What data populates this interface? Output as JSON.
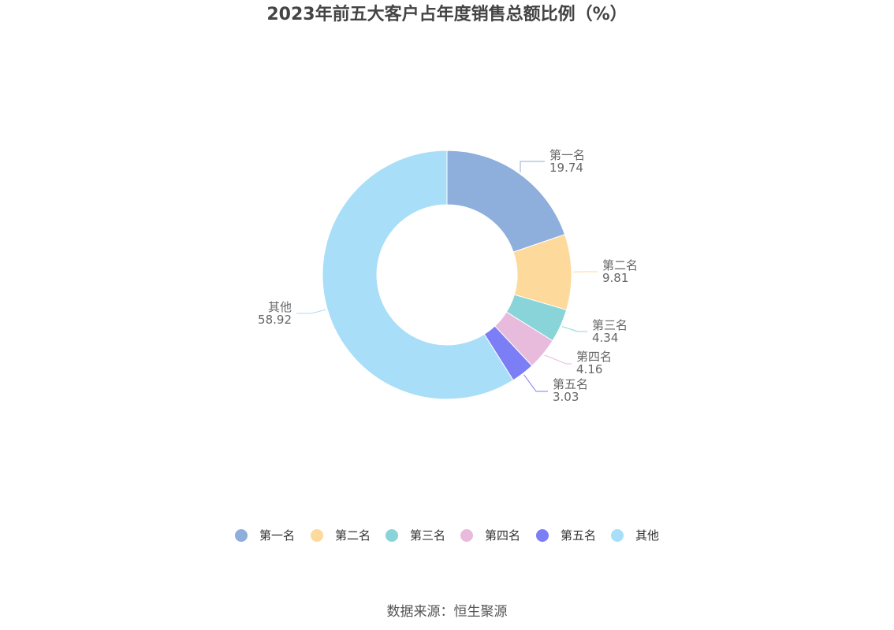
{
  "title": "2023年前五大客户占年度销售总额比例（%）",
  "source": "数据来源：恒生聚源",
  "chart_data": {
    "type": "pie",
    "subtype": "donut",
    "title": "2023年前五大客户占年度销售总额比例（%）",
    "legend_position": "bottom",
    "slices": [
      {
        "label": "第一名",
        "value": 19.74,
        "value_text": "19.74",
        "color": "#8eaedb"
      },
      {
        "label": "第二名",
        "value": 9.81,
        "value_text": "9.81",
        "color": "#fdd99b"
      },
      {
        "label": "第三名",
        "value": 4.34,
        "value_text": "4.34",
        "color": "#88d4d9"
      },
      {
        "label": "第四名",
        "value": 4.16,
        "value_text": "4.16",
        "color": "#e8bbdc"
      },
      {
        "label": "第五名",
        "value": 3.03,
        "value_text": "3.03",
        "color": "#7b7ef5"
      },
      {
        "label": "其他",
        "value": 58.92,
        "value_text": "58.92",
        "color": "#a8def8"
      }
    ]
  }
}
